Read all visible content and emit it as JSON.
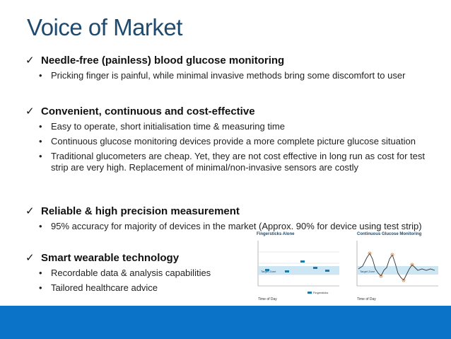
{
  "title": "Voice of Market",
  "sections": [
    {
      "heading": "Needle-free (painless) blood glucose monitoring",
      "bullets": [
        "Pricking finger is painful, while minimal invasive methods bring some discomfort to user"
      ]
    },
    {
      "heading": "Convenient, continuous and cost-effective",
      "bullets": [
        "Easy to operate, short initialisation time & measuring time",
        "Continuous glucose monitoring devices provide a more complete picture glucose situation",
        "Traditional glucometers are cheap. Yet, they are not cost effective in long run as cost for test strip are very high. Replacement of minimal/non-invasive sensors are costly"
      ]
    },
    {
      "heading": "Reliable & high precision measurement",
      "bullets": [
        "95% accuracy for majority of devices in the market (Approx. 90% for device using test strip)"
      ]
    },
    {
      "heading": "Smart wearable technology",
      "bullets": [
        "Recordable data & analysis capabilities",
        "Tailored healthcare advice"
      ]
    }
  ],
  "figure": {
    "left_title": "Fingersticks Alone",
    "right_title": "Continuous Glucose Monitoring",
    "target_zone_label": "Target Zone",
    "xlabel": "Time of Day",
    "legend_label": "Fingersticks",
    "accent_color": "#0b73c8"
  }
}
